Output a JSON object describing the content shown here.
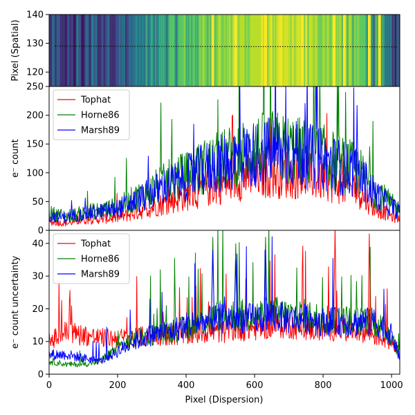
{
  "chart_data": [
    {
      "type": "heatmap",
      "ylabel": "Pixel (Spatial)",
      "xlim": [
        0,
        1024
      ],
      "ylim": [
        115,
        140
      ],
      "yticks": [
        120,
        130,
        140
      ],
      "trace_y": 129,
      "trace_style": "dotted black",
      "colormap": "viridis",
      "bright_columns": [
        478,
        545,
        632,
        740,
        832,
        862,
        935,
        965
      ]
    },
    {
      "type": "line",
      "ylabel": "e⁻ count",
      "xlim": [
        0,
        1024
      ],
      "ylim": [
        0,
        250
      ],
      "yticks": [
        0,
        50,
        100,
        150,
        200,
        250
      ],
      "legend_position": "top-left",
      "series": [
        {
          "name": "Tophat",
          "color": "#ff0000",
          "x": [
            0,
            50,
            100,
            150,
            200,
            250,
            300,
            350,
            400,
            450,
            500,
            550,
            600,
            650,
            700,
            750,
            800,
            850,
            900,
            950,
            1000,
            1024
          ],
          "values": [
            15,
            12,
            18,
            20,
            22,
            30,
            40,
            50,
            60,
            70,
            80,
            90,
            95,
            100,
            98,
            95,
            90,
            80,
            70,
            40,
            25,
            20
          ]
        },
        {
          "name": "Horne86",
          "color": "#008000",
          "x": [
            0,
            50,
            100,
            150,
            200,
            250,
            300,
            350,
            400,
            450,
            500,
            550,
            600,
            650,
            700,
            750,
            800,
            850,
            900,
            950,
            1000,
            1024
          ],
          "values": [
            30,
            25,
            30,
            35,
            40,
            55,
            70,
            85,
            95,
            110,
            120,
            130,
            140,
            145,
            140,
            135,
            128,
            115,
            105,
            70,
            45,
            35
          ]
        },
        {
          "name": "Marsh89",
          "color": "#0000ff",
          "x": [
            0,
            50,
            100,
            150,
            200,
            250,
            300,
            350,
            400,
            450,
            500,
            550,
            600,
            650,
            700,
            750,
            800,
            850,
            900,
            950,
            1000,
            1024
          ],
          "values": [
            25,
            22,
            28,
            32,
            38,
            50,
            65,
            80,
            90,
            105,
            115,
            125,
            132,
            138,
            135,
            130,
            122,
            110,
            100,
            65,
            42,
            32
          ]
        }
      ]
    },
    {
      "type": "line",
      "xlabel": "Pixel (Dispersion)",
      "ylabel": "e⁻ count uncertainty",
      "xlim": [
        0,
        1024
      ],
      "ylim": [
        0,
        44
      ],
      "xticks": [
        0,
        200,
        400,
        600,
        800,
        1000
      ],
      "yticks": [
        0,
        10,
        20,
        30,
        40
      ],
      "legend_position": "top-left",
      "series": [
        {
          "name": "Tophat",
          "color": "#ff0000",
          "x": [
            0,
            50,
            100,
            150,
            200,
            250,
            300,
            350,
            400,
            450,
            500,
            550,
            600,
            650,
            700,
            750,
            800,
            850,
            900,
            950,
            1000,
            1024
          ],
          "values": [
            10,
            13,
            12,
            11,
            11,
            11,
            12,
            12,
            12,
            13,
            13,
            14,
            14,
            15,
            15,
            14,
            14,
            14,
            14,
            12,
            10,
            8
          ]
        },
        {
          "name": "Horne86",
          "color": "#008000",
          "x": [
            0,
            50,
            100,
            150,
            200,
            250,
            300,
            350,
            400,
            450,
            500,
            550,
            600,
            650,
            700,
            750,
            800,
            850,
            900,
            950,
            1000,
            1024
          ],
          "values": [
            4,
            3,
            3,
            4,
            8,
            11,
            12,
            13,
            14,
            16,
            18,
            18,
            18,
            19,
            18,
            18,
            17,
            17,
            16,
            16,
            12,
            6
          ]
        },
        {
          "name": "Marsh89",
          "color": "#0000ff",
          "x": [
            0,
            50,
            100,
            150,
            200,
            250,
            300,
            350,
            400,
            450,
            500,
            550,
            600,
            650,
            700,
            750,
            800,
            850,
            900,
            950,
            1000,
            1024
          ],
          "values": [
            6,
            6,
            5,
            4,
            7,
            10,
            12,
            13,
            15,
            16,
            17,
            17,
            17,
            18,
            17,
            17,
            16,
            16,
            16,
            16,
            12,
            5
          ]
        }
      ],
      "spikes": [
        {
          "series": "Tophat",
          "x": 835,
          "value": 45
        },
        {
          "series": "Tophat",
          "x": 935,
          "value": 43
        },
        {
          "series": "Horne86",
          "x": 478,
          "value": 42
        },
        {
          "series": "Horne86",
          "x": 545,
          "value": 40
        },
        {
          "series": "Horne86",
          "x": 632,
          "value": 42
        },
        {
          "series": "Marsh89",
          "x": 478,
          "value": 38
        },
        {
          "series": "Marsh89",
          "x": 545,
          "value": 35
        },
        {
          "series": "Marsh89",
          "x": 632,
          "value": 38
        }
      ]
    }
  ]
}
